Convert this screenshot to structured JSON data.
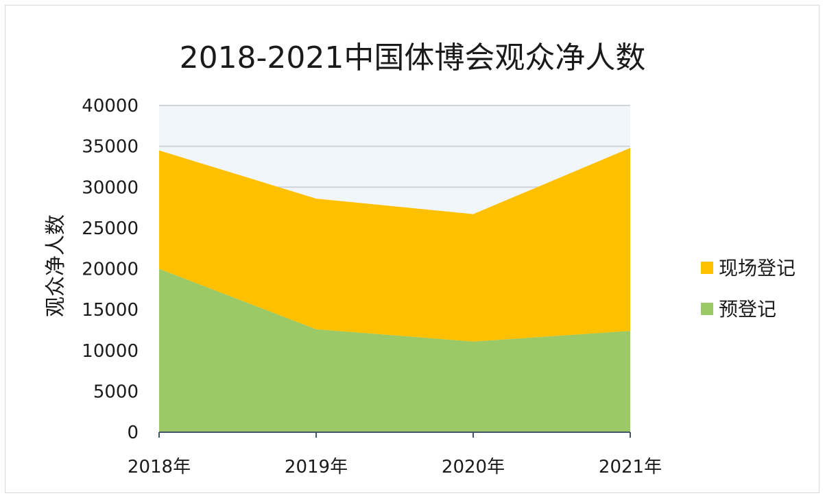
{
  "chart_data": {
    "type": "area",
    "stacked": true,
    "title": "2018-2021中国体博会观众净人数",
    "xlabel": "",
    "ylabel": "观众净人数",
    "categories": [
      "2018年",
      "2019年",
      "2020年",
      "2021年"
    ],
    "ylim": [
      0,
      40000
    ],
    "yticks": [
      0,
      5000,
      10000,
      15000,
      20000,
      25000,
      30000,
      35000,
      40000
    ],
    "grid": true,
    "legend_position": "right",
    "series": [
      {
        "name": "预登记",
        "values": [
          20000,
          12600,
          11100,
          12400
        ],
        "color": "#9bc965"
      },
      {
        "name": "现场登记",
        "values": [
          14500,
          16000,
          15600,
          22400
        ],
        "color": "#ffc000"
      }
    ],
    "plot_background": "#f1f6fa",
    "gridline_color": "#d0d4d8"
  }
}
